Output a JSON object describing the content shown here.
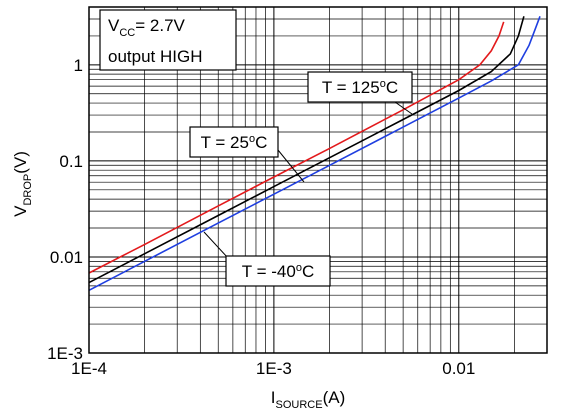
{
  "chart_data": {
    "type": "line",
    "x_scale": "log",
    "y_scale": "log",
    "xlim": [
      0.0001,
      0.03
    ],
    "ylim": [
      0.001,
      4
    ],
    "grid": true,
    "x_ticks": [
      {
        "value": 0.0001,
        "label": "1E-4"
      },
      {
        "value": 0.001,
        "label": "1E-3"
      },
      {
        "value": 0.01,
        "label": "0.01"
      }
    ],
    "y_ticks": [
      {
        "value": 0.001,
        "label": "1E-3"
      },
      {
        "value": 0.01,
        "label": "0.01"
      },
      {
        "value": 0.1,
        "label": "0.1"
      },
      {
        "value": 1,
        "label": "1"
      }
    ],
    "xlabel": {
      "main": "I",
      "sub": "SOURCE",
      "unit": "(A)"
    },
    "ylabel": {
      "main": "V",
      "sub": "DROP",
      "unit": "(V)"
    },
    "condition_box": {
      "line1_main": "V",
      "line1_sub": "CC",
      "line1_rest": "= 2.7V",
      "line2": "output HIGH"
    },
    "series": [
      {
        "name": "T = 125°C",
        "label_prefix": "T = 125",
        "label_suffix": "C",
        "color": "#e31a1c",
        "points": [
          [
            0.0001,
            0.0068
          ],
          [
            0.0002,
            0.0135
          ],
          [
            0.0005,
            0.034
          ],
          [
            0.001,
            0.068
          ],
          [
            0.002,
            0.135
          ],
          [
            0.005,
            0.34
          ],
          [
            0.01,
            0.7
          ],
          [
            0.013,
            1.0
          ],
          [
            0.015,
            1.4
          ],
          [
            0.0165,
            2.0
          ],
          [
            0.0175,
            2.8
          ]
        ]
      },
      {
        "name": "T = 25°C",
        "label_prefix": "T = 25",
        "label_suffix": "C",
        "color": "#000000",
        "points": [
          [
            0.0001,
            0.0054
          ],
          [
            0.0002,
            0.0108
          ],
          [
            0.0005,
            0.027
          ],
          [
            0.001,
            0.054
          ],
          [
            0.002,
            0.108
          ],
          [
            0.005,
            0.27
          ],
          [
            0.01,
            0.54
          ],
          [
            0.015,
            0.85
          ],
          [
            0.019,
            1.3
          ],
          [
            0.021,
            2.0
          ],
          [
            0.0225,
            3.2
          ]
        ]
      },
      {
        "name": "T = -40°C",
        "label_prefix": "T = -40",
        "label_suffix": "C",
        "color": "#1f3fe0",
        "points": [
          [
            0.0001,
            0.0045
          ],
          [
            0.0002,
            0.009
          ],
          [
            0.0005,
            0.0225
          ],
          [
            0.001,
            0.045
          ],
          [
            0.002,
            0.09
          ],
          [
            0.005,
            0.225
          ],
          [
            0.01,
            0.45
          ],
          [
            0.015,
            0.68
          ],
          [
            0.021,
            1.0
          ],
          [
            0.024,
            1.6
          ],
          [
            0.026,
            2.4
          ],
          [
            0.0275,
            3.2
          ]
        ]
      }
    ]
  }
}
